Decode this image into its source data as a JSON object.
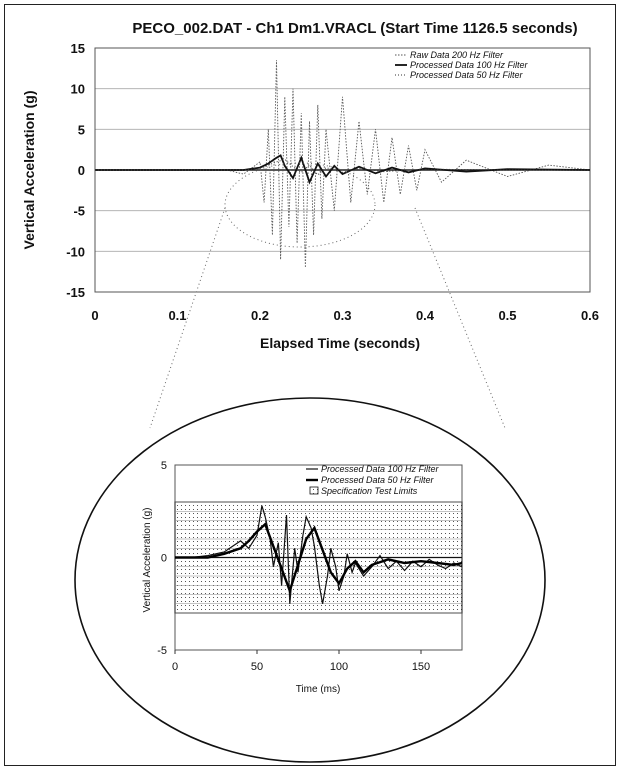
{
  "chart_data": [
    {
      "type": "line",
      "title": "PECO_002.DAT - Ch1 Dm1.VRACL (Start Time 1126.5 seconds)",
      "xlabel": "Elapsed Time (seconds)",
      "ylabel": "Vertical Acceleration (g)",
      "xlim": [
        0,
        0.6
      ],
      "ylim": [
        -15,
        15
      ],
      "x_ticks": [
        "0",
        "0.1",
        "0.2",
        "0.3",
        "0.4",
        "0.5",
        "0.6"
      ],
      "y_ticks": [
        "15",
        "10",
        "5",
        "0",
        "-5",
        "-10",
        "-15"
      ],
      "grid": true,
      "legend_position": "top-right",
      "series": [
        {
          "name": "Raw Data 200 Hz Filter",
          "x": [
            0,
            0.16,
            0.18,
            0.2,
            0.205,
            0.21,
            0.215,
            0.22,
            0.225,
            0.23,
            0.235,
            0.24,
            0.245,
            0.25,
            0.255,
            0.26,
            0.265,
            0.27,
            0.275,
            0.28,
            0.29,
            0.3,
            0.31,
            0.32,
            0.33,
            0.34,
            0.35,
            0.36,
            0.37,
            0.38,
            0.39,
            0.4,
            0.42,
            0.45,
            0.5,
            0.55,
            0.6
          ],
          "y": [
            0,
            0,
            -0.5,
            1,
            -4,
            5,
            -8,
            13.5,
            -11,
            9,
            -7,
            10,
            -9,
            7,
            -12,
            6,
            -8,
            8,
            -6,
            5,
            -5,
            9,
            -4,
            6,
            -3,
            5,
            -4,
            4,
            -3,
            3,
            -2.5,
            2.5,
            -1.5,
            1.2,
            -0.8,
            0.6,
            0
          ]
        },
        {
          "name": "Processed Data 100 Hz Filter",
          "x": [
            0,
            0.18,
            0.2,
            0.21,
            0.22,
            0.225,
            0.23,
            0.24,
            0.25,
            0.26,
            0.27,
            0.28,
            0.29,
            0.3,
            0.32,
            0.34,
            0.36,
            0.38,
            0.4,
            0.45,
            0.5,
            0.6
          ],
          "y": [
            0,
            0,
            0.3,
            0.8,
            1.5,
            1.8,
            0.5,
            -1,
            1.5,
            -1.5,
            0.8,
            -0.8,
            0.5,
            -0.5,
            0.4,
            -0.4,
            0.3,
            -0.3,
            0.2,
            -0.2,
            0.1,
            0
          ]
        },
        {
          "name": "Processed Data 50 Hz Filter",
          "x": [
            0,
            0.18,
            0.2,
            0.22,
            0.23,
            0.24,
            0.25,
            0.26,
            0.27,
            0.28,
            0.3,
            0.32,
            0.35,
            0.4,
            0.5,
            0.6
          ],
          "y": [
            0,
            0,
            0.2,
            1,
            1.3,
            0.4,
            -0.3,
            0.6,
            -0.6,
            0.3,
            -0.3,
            0.2,
            -0.2,
            0.1,
            0,
            0
          ]
        }
      ]
    },
    {
      "type": "line",
      "title": "",
      "xlabel": "Time (ms)",
      "ylabel": "Vertical Acceleration (g)",
      "xlim": [
        0,
        175
      ],
      "ylim": [
        -5,
        5
      ],
      "x_ticks": [
        "0",
        "50",
        "100",
        "150"
      ],
      "y_ticks": [
        "5",
        "0",
        "-5"
      ],
      "legend_position": "top-right",
      "series": [
        {
          "name": "Processed Data 100 Hz Filter",
          "x": [
            0,
            10,
            20,
            30,
            35,
            40,
            45,
            50,
            53,
            55,
            58,
            60,
            63,
            65,
            68,
            70,
            73,
            75,
            78,
            80,
            83,
            85,
            88,
            90,
            93,
            95,
            98,
            100,
            103,
            105,
            108,
            110,
            115,
            120,
            125,
            130,
            135,
            140,
            145,
            150,
            155,
            160,
            165,
            170,
            175
          ],
          "y": [
            0,
            0,
            0.1,
            0.3,
            0.6,
            0.9,
            0.5,
            1.2,
            2.8,
            2.2,
            1.0,
            -0.5,
            0.8,
            -1.5,
            2.3,
            -2.5,
            0.5,
            -0.8,
            1.2,
            2.2,
            1.6,
            0.6,
            -1.5,
            -2.5,
            -1.0,
            0.5,
            -0.5,
            -1.8,
            -1.0,
            0.2,
            -0.8,
            -0.3,
            -1.0,
            -0.5,
            0.1,
            -0.6,
            -0.2,
            -0.7,
            -0.2,
            -0.5,
            -0.1,
            -0.4,
            -0.6,
            -0.3,
            -0.5
          ]
        },
        {
          "name": "Processed Data 50 Hz Filter",
          "x": [
            0,
            20,
            30,
            40,
            45,
            50,
            55,
            60,
            65,
            70,
            75,
            80,
            85,
            90,
            95,
            100,
            105,
            110,
            115,
            120,
            130,
            140,
            150,
            160,
            170,
            175
          ],
          "y": [
            0,
            0,
            0.2,
            0.5,
            0.9,
            1.4,
            1.8,
            0.6,
            -0.6,
            -1.8,
            -0.4,
            1.0,
            1.6,
            0.4,
            -0.8,
            -1.4,
            -0.6,
            -0.2,
            -0.8,
            -0.4,
            -0.1,
            -0.3,
            -0.2,
            -0.3,
            -0.4,
            -0.3
          ]
        },
        {
          "name": "Specification Test Limits",
          "band": [
            -3,
            3
          ]
        }
      ]
    }
  ]
}
